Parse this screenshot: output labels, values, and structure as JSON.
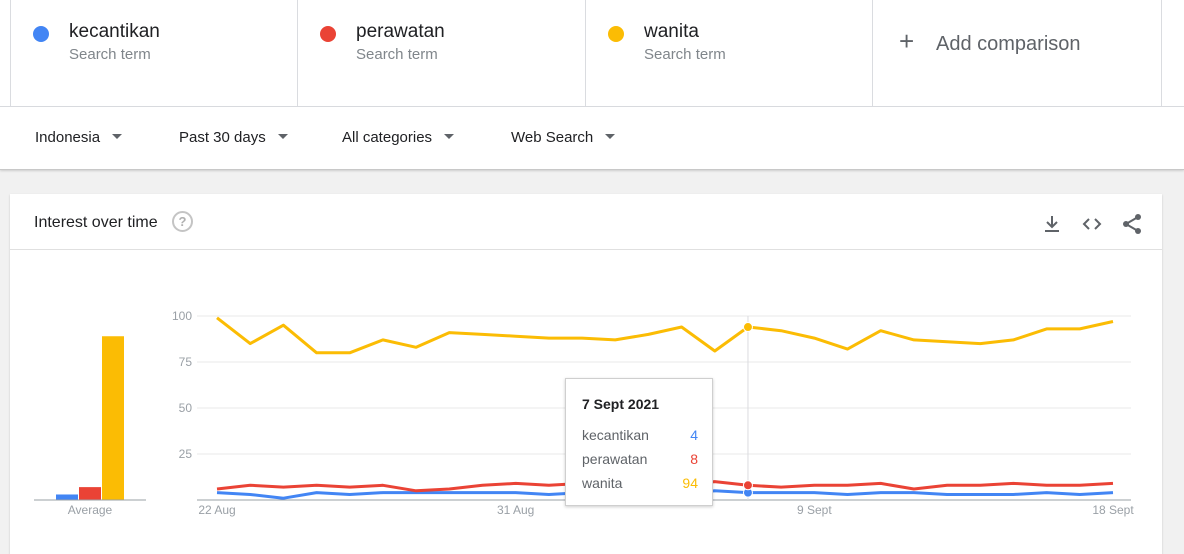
{
  "terms": [
    {
      "name": "kecantikan",
      "sub": "Search term",
      "color": "#4285f4"
    },
    {
      "name": "perawatan",
      "sub": "Search term",
      "color": "#ea4335"
    },
    {
      "name": "wanita",
      "sub": "Search term",
      "color": "#fbbc04"
    }
  ],
  "add_comparison": {
    "icon": "plus-icon",
    "label": "Add comparison"
  },
  "filters": [
    {
      "label": "Indonesia",
      "icon": "caret-down-icon"
    },
    {
      "label": "Past 30 days",
      "icon": "caret-down-icon"
    },
    {
      "label": "All categories",
      "icon": "caret-down-icon"
    },
    {
      "label": "Web Search",
      "icon": "caret-down-icon"
    }
  ],
  "card": {
    "title": "Interest over time",
    "help_icon": "help-icon",
    "tools": [
      "download-icon",
      "embed-code-icon",
      "share-icon"
    ]
  },
  "tooltip": {
    "date": "7 Sept 2021",
    "rows": [
      {
        "name": "kecantikan",
        "value": "4"
      },
      {
        "name": "perawatan",
        "value": "8"
      },
      {
        "name": "wanita",
        "value": "94"
      }
    ]
  },
  "chart_data": {
    "type": "line",
    "title": "",
    "xlabel": "",
    "ylabel": "",
    "ylim": [
      0,
      100
    ],
    "y_ticks": [
      25,
      50,
      75,
      100
    ],
    "x_ticks": [
      "22 Aug",
      "31 Aug",
      "9 Sept",
      "18 Sept"
    ],
    "x": [
      "22 Aug",
      "23 Aug",
      "24 Aug",
      "25 Aug",
      "26 Aug",
      "27 Aug",
      "28 Aug",
      "29 Aug",
      "30 Aug",
      "31 Aug",
      "1 Sept",
      "2 Sept",
      "3 Sept",
      "4 Sept",
      "5 Sept",
      "6 Sept",
      "7 Sept",
      "8 Sept",
      "9 Sept",
      "10 Sept",
      "11 Sept",
      "12 Sept",
      "13 Sept",
      "14 Sept",
      "15 Sept",
      "16 Sept",
      "17 Sept",
      "18 Sept"
    ],
    "grid": true,
    "highlight_index": 16,
    "series": [
      {
        "name": "kecantikan",
        "color": "#4285f4",
        "values": [
          4,
          3,
          1,
          4,
          3,
          4,
          4,
          4,
          4,
          4,
          3,
          4,
          4,
          3,
          3,
          5,
          4,
          4,
          4,
          3,
          4,
          4,
          3,
          3,
          3,
          4,
          3,
          4
        ]
      },
      {
        "name": "perawatan",
        "color": "#ea4335",
        "values": [
          6,
          8,
          7,
          8,
          7,
          8,
          5,
          6,
          8,
          9,
          8,
          9,
          8,
          7,
          8,
          10,
          8,
          7,
          8,
          8,
          9,
          6,
          8,
          8,
          9,
          8,
          8,
          9
        ]
      },
      {
        "name": "wanita",
        "color": "#fbbc04",
        "values": [
          99,
          85,
          95,
          80,
          80,
          87,
          83,
          91,
          90,
          89,
          88,
          88,
          87,
          90,
          94,
          81,
          94,
          92,
          88,
          82,
          92,
          87,
          86,
          85,
          87,
          93,
          93,
          97
        ]
      }
    ],
    "average": {
      "label": "Average",
      "values": [
        3,
        7,
        89
      ]
    }
  }
}
